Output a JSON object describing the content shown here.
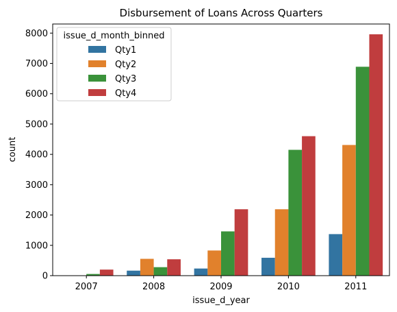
{
  "chart_data": {
    "type": "bar",
    "title": "Disbursement of Loans Across Quarters",
    "xlabel": "issue_d_year",
    "ylabel": "count",
    "categories": [
      "2007",
      "2008",
      "2009",
      "2010",
      "2011"
    ],
    "ylim": [
      0,
      8300
    ],
    "yticks": [
      0,
      1000,
      2000,
      3000,
      4000,
      5000,
      6000,
      7000,
      8000
    ],
    "grid": false,
    "legend": {
      "title": "issue_d_month_binned",
      "position": "top-left"
    },
    "series": [
      {
        "name": "Qty1",
        "color": "#3274a1",
        "values": [
          0,
          165,
          235,
          590,
          1370
        ]
      },
      {
        "name": "Qty2",
        "color": "#e1812c",
        "values": [
          0,
          555,
          830,
          2190,
          4310
        ]
      },
      {
        "name": "Qty3",
        "color": "#3a923a",
        "values": [
          55,
          280,
          1460,
          4150,
          6890
        ]
      },
      {
        "name": "Qty4",
        "color": "#c03d3e",
        "values": [
          200,
          540,
          2190,
          4600,
          7960
        ]
      }
    ]
  }
}
